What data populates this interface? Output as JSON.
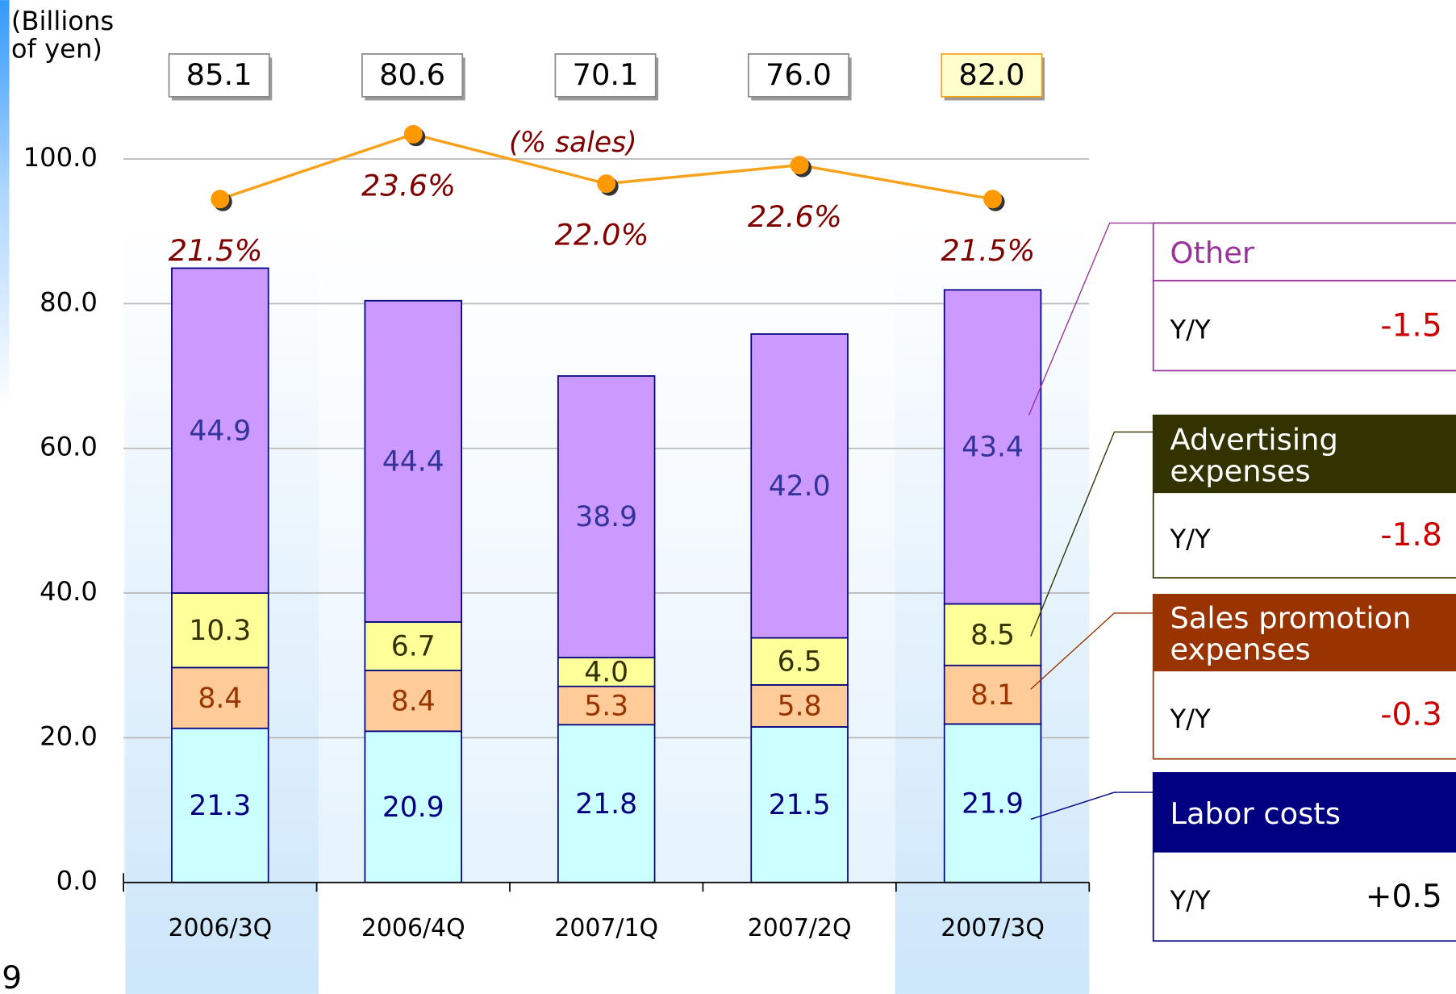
{
  "chart_data": {
    "type": "bar",
    "y_axis_label": "(Billions of yen)",
    "page_number": "9",
    "categories": [
      "2006/3Q",
      "2006/4Q",
      "2007/1Q",
      "2007/2Q",
      "2007/3Q"
    ],
    "ylim": [
      0,
      100
    ],
    "yticks": [
      {
        "value": 0,
        "label": "0.0"
      },
      {
        "value": 20,
        "label": "20.0"
      },
      {
        "value": 40,
        "label": "40.0"
      },
      {
        "value": 60,
        "label": "60.0"
      },
      {
        "value": 80,
        "label": "80.0"
      },
      {
        "value": 100,
        "label": "100.0"
      }
    ],
    "grid": true,
    "y2lim": [
      -0.6,
      22.8
    ],
    "yoy_label": "Y/Y",
    "series": [
      {
        "name": "Labor costs",
        "color": "#ccffff",
        "label_color": "#000080",
        "header_color": "#000080",
        "border_color": "#000080",
        "header_text_color": "#ffffff",
        "yoy_color": "#000000",
        "values": [
          21.3,
          20.9,
          21.8,
          21.5,
          21.9
        ],
        "yoy": {
          "value": 0.5,
          "label": "+0.5"
        }
      },
      {
        "name": "Sales promotion expenses",
        "color": "#ffcc99",
        "label_color": "#993300",
        "header_color": "#993300",
        "border_color": "#993300",
        "header_text_color": "#ffffff",
        "yoy_color": "#cc0000",
        "values": [
          8.4,
          8.4,
          5.3,
          5.8,
          8.1
        ],
        "yoy": -0.3
      },
      {
        "name": "Advertising expenses",
        "color": "#ffff99",
        "label_color": "#333300",
        "header_color": "#333300",
        "border_color": "#333300",
        "header_text_color": "#ffffff",
        "yoy_color": "#cc0000",
        "values": [
          10.3,
          6.7,
          4.0,
          6.5,
          8.5
        ],
        "value_labels": [
          "10.3",
          "6.7",
          "4.0",
          "6.5",
          "8.5"
        ],
        "yoy": -1.8
      },
      {
        "name": "Other",
        "color": "#cc99ff",
        "label_color": "#333399",
        "header_color": "#ffffff",
        "border_color": "#993399",
        "header_text_color": "#993399",
        "yoy_color": "#cc0000",
        "values": [
          44.9,
          44.4,
          38.9,
          42.0,
          43.4
        ],
        "value_labels": [
          "44.9",
          "44.4",
          "38.9",
          "42.0",
          "43.4"
        ],
        "yoy": -1.5
      }
    ],
    "totals": {
      "values": [
        85.1,
        80.6,
        70.1,
        76.0,
        82.0
      ],
      "value_labels": [
        "85.1",
        "80.6",
        "70.1",
        "76.0",
        "82.0"
      ]
    },
    "line": {
      "label": "(% sales)",
      "color": "#f7a21b",
      "marker_color": "#ff9900",
      "label_color": "#800000",
      "axis": "y2",
      "values": [
        21.5,
        23.6,
        22.0,
        22.6,
        21.5
      ],
      "value_labels": [
        "21.5%",
        "23.6%",
        "22.0%",
        "22.6%",
        "21.5%"
      ]
    }
  }
}
